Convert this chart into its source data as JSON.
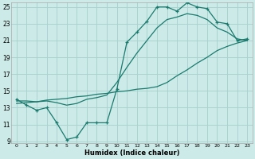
{
  "xlabel": "Humidex (Indice chaleur)",
  "bg_color": "#cceae7",
  "grid_color": "#aad4d0",
  "line_color": "#1a7a6e",
  "x_min": 0,
  "x_max": 23,
  "y_min": 9,
  "y_max": 25,
  "yticks": [
    9,
    11,
    13,
    15,
    17,
    19,
    21,
    23,
    25
  ],
  "xticks": [
    0,
    1,
    2,
    3,
    4,
    5,
    6,
    7,
    8,
    9,
    10,
    11,
    12,
    13,
    14,
    15,
    16,
    17,
    18,
    19,
    20,
    21,
    22,
    23
  ],
  "line1_x": [
    0,
    1,
    2,
    3,
    4,
    5,
    6,
    7,
    8,
    9,
    10,
    11,
    12,
    13,
    14,
    15,
    16,
    17,
    18,
    19,
    20,
    21,
    22,
    23
  ],
  "line1_y": [
    14.0,
    13.3,
    12.7,
    13.0,
    11.2,
    9.2,
    9.5,
    11.2,
    11.2,
    11.2,
    15.2,
    20.8,
    22.0,
    23.3,
    25.0,
    25.0,
    24.5,
    25.5,
    25.0,
    24.8,
    23.2,
    23.0,
    21.0,
    21.2
  ],
  "line2_x": [
    0,
    1,
    2,
    3,
    4,
    5,
    6,
    7,
    8,
    9,
    10,
    11,
    12,
    13,
    14,
    15,
    16,
    17,
    18,
    19,
    20,
    21,
    22,
    23
  ],
  "line2_y": [
    13.5,
    13.6,
    13.7,
    13.9,
    14.0,
    14.1,
    14.3,
    14.4,
    14.6,
    14.7,
    14.9,
    15.0,
    15.2,
    15.3,
    15.5,
    16.0,
    16.8,
    17.5,
    18.3,
    19.0,
    19.8,
    20.3,
    20.7,
    21.0
  ],
  "line3_x": [
    0,
    1,
    2,
    3,
    4,
    5,
    6,
    7,
    8,
    9,
    10,
    11,
    12,
    13,
    14,
    15,
    16,
    17,
    18,
    19,
    20,
    21,
    22,
    23
  ],
  "line3_y": [
    13.8,
    13.8,
    13.7,
    13.8,
    13.6,
    13.3,
    13.5,
    14.0,
    14.2,
    14.5,
    16.0,
    17.8,
    19.5,
    21.0,
    22.5,
    23.5,
    23.8,
    24.2,
    24.0,
    23.5,
    22.5,
    22.0,
    21.2,
    21.0
  ]
}
